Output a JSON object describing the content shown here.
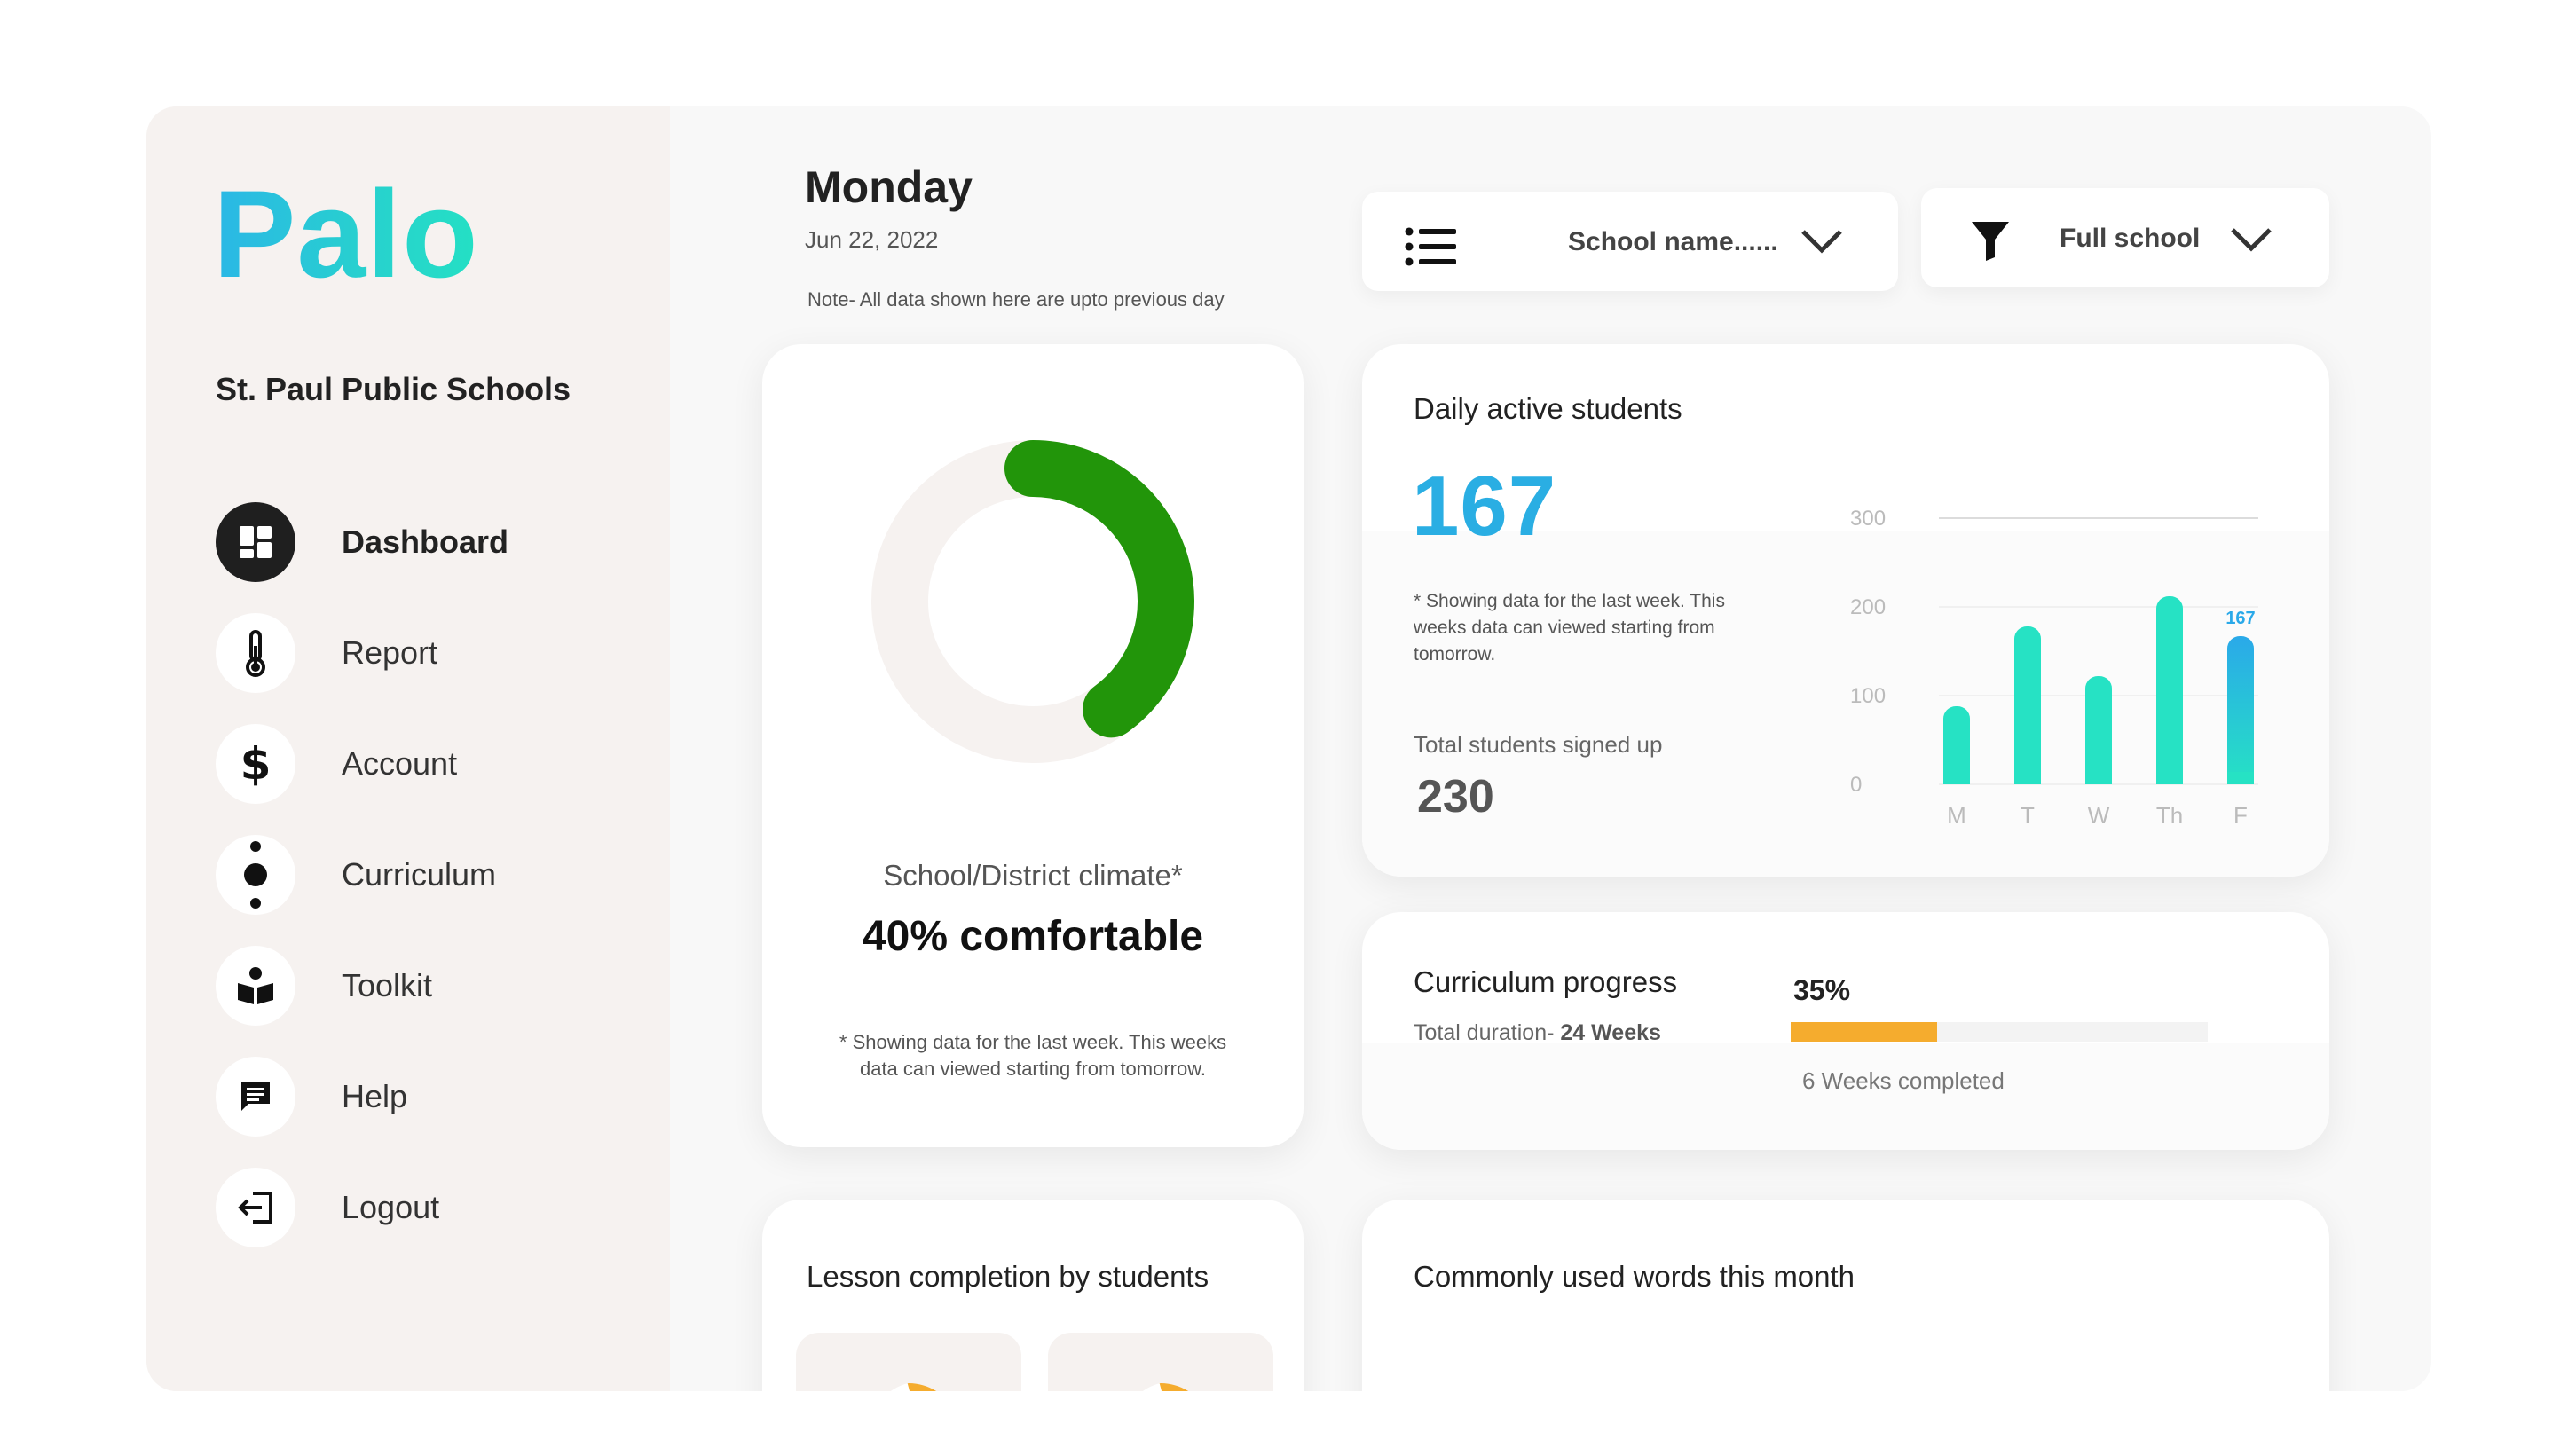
{
  "sidebar": {
    "logo": "Palo",
    "school": "St. Paul Public Schools",
    "items": [
      {
        "label": "Dashboard",
        "icon": "dashboard-grid-icon",
        "active": true
      },
      {
        "label": "Report",
        "icon": "thermometer-icon",
        "active": false
      },
      {
        "label": "Account",
        "icon": "dollar-icon",
        "active": false
      },
      {
        "label": "Curriculum",
        "icon": "curriculum-dots-icon",
        "active": false
      },
      {
        "label": "Toolkit",
        "icon": "toolkit-reader-icon",
        "active": false
      },
      {
        "label": "Help",
        "icon": "chat-bubble-icon",
        "active": false
      },
      {
        "label": "Logout",
        "icon": "logout-icon",
        "active": false
      }
    ]
  },
  "header": {
    "day": "Monday",
    "date": "Jun 22, 2022",
    "note": "Note- All data shown here are upto previous day",
    "school_select": "School name......",
    "scope_select": "Full school"
  },
  "climate": {
    "label": "School/District climate*",
    "value": "40% comfortable",
    "percent": 40,
    "note": "* Showing data for the last week. This weeks data can viewed starting from tomorrow."
  },
  "active_students": {
    "title": "Daily active students",
    "value": "167",
    "note": "* Showing data for the last week. This weeks data can viewed starting from tomorrow.",
    "signed_label": "Total students signed up",
    "signed_value": "230"
  },
  "chart_data": {
    "type": "bar",
    "categories": [
      "M",
      "T",
      "W",
      "Th",
      "F"
    ],
    "values": [
      88,
      178,
      122,
      212,
      167
    ],
    "highlight_label": "167",
    "ylim": [
      0,
      300
    ],
    "yticks": [
      "0",
      "100",
      "200",
      "300"
    ],
    "grid": true,
    "colors": {
      "bar": "#26e2c4",
      "highlight_top": "#2aa9e9"
    }
  },
  "progress": {
    "title": "Curriculum progress",
    "percent_label": "35%",
    "percent": 0.35,
    "duration_prefix": "Total duration-",
    "duration_value": "24 Weeks",
    "completed": "6 Weeks completed"
  },
  "lesson": {
    "title": "Lesson completion by students"
  },
  "words": {
    "title": "Commonly used words this month"
  },
  "colors": {
    "accent": "#2aaee3",
    "green": "#22950a",
    "orange": "#f5ac2e",
    "teal": "#26e2c4"
  }
}
